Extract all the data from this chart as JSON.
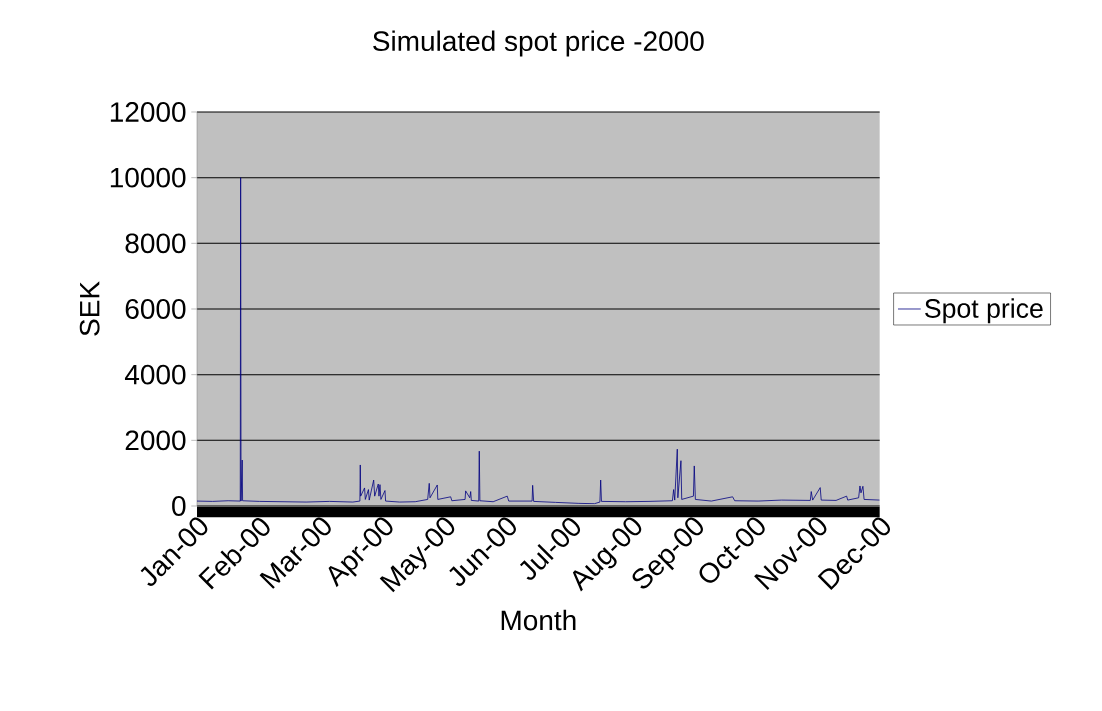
{
  "chart_data": {
    "type": "line",
    "title": "Simulated spot price -2000",
    "xlabel": "Month",
    "ylabel": "SEK",
    "x": [
      "2000-01-01T00:00",
      "2000-01-09T08:00",
      "2000-01-17T16:00",
      "2000-01-24T03:00",
      "2000-01-24T08:00",
      "2000-01-24T10:00",
      "2000-01-24T13:00",
      "2000-01-25T04:00",
      "2000-01-25T09:00",
      "2000-02-03T08:00",
      "2000-02-15T20:00",
      "2000-02-28T08:00",
      "2000-03-11T20:00",
      "2000-03-24T08:00",
      "2000-03-28T02:00",
      "2000-03-28T07:00",
      "2000-03-28T12:00",
      "2000-03-30T14:00",
      "2000-03-31T00:00",
      "2000-04-01T16:00",
      "2000-04-02T02:00",
      "2000-04-04T11:00",
      "2000-04-05T00:00",
      "2000-04-06T22:00",
      "2000-04-07T07:00",
      "2000-04-07T20:00",
      "2000-04-08T08:00",
      "2000-04-10T12:00",
      "2000-04-10T20:00",
      "2000-04-18T08:00",
      "2000-04-26T16:00",
      "2000-05-03T08:00",
      "2000-05-04T04:00",
      "2000-05-04T14:00",
      "2000-05-08T11:00",
      "2000-05-08T18:00",
      "2000-05-15T15:00",
      "2000-05-16T06:00",
      "2000-05-23T08:00",
      "2000-05-23T15:00",
      "2000-05-25T20:00",
      "2000-05-26T08:00",
      "2000-05-26T16:00",
      "2000-05-30T15:00",
      "2000-05-30T22:00",
      "2000-05-31T06:00",
      "2000-06-07T08:00",
      "2000-06-14T21:00",
      "2000-06-15T16:00",
      "2000-06-28T04:00",
      "2000-06-28T11:00",
      "2000-06-29T00:00",
      "2000-07-10T16:00",
      "2000-07-23T04:00",
      "2000-07-31T12:00",
      "2000-08-03T10:00",
      "2000-08-03T20:00",
      "2000-08-04T06:00",
      "2000-08-17T04:00",
      "2000-08-29T16:00",
      "2000-09-11T04:00",
      "2000-09-11T20:00",
      "2000-09-12T10:00",
      "2000-09-13T19:00",
      "2000-09-14T02:00",
      "2000-09-15T18:00",
      "2000-09-16T04:00",
      "2000-09-22T10:00",
      "2000-09-22T21:00",
      "2000-09-23T11:00",
      "2000-10-02T00:00",
      "2000-10-13T09:00",
      "2000-10-14T12:00",
      "2000-10-27T00:00",
      "2000-11-08T12:00",
      "2000-11-23T22:00",
      "2000-11-24T10:00",
      "2000-11-25T04:00",
      "2000-11-29T05:00",
      "2000-11-29T18:00",
      "2000-12-07T16:00",
      "2000-12-13T08:00",
      "2000-12-13T22:00",
      "2000-12-19T18:00",
      "2000-12-20T11:00",
      "2000-12-21T00:00",
      "2000-12-22T01:00",
      "2000-12-22T16:00",
      "2000-12-31T00:00"
    ],
    "series": [
      {
        "name": "Spot price",
        "color": "#000080",
        "values": [
          150,
          140,
          160,
          150,
          10000,
          6450,
          150,
          1400,
          160,
          140,
          130,
          120,
          140,
          120,
          150,
          1250,
          300,
          550,
          200,
          500,
          180,
          790,
          300,
          670,
          300,
          650,
          200,
          470,
          150,
          120,
          130,
          200,
          690,
          250,
          640,
          200,
          280,
          160,
          200,
          460,
          250,
          440,
          170,
          150,
          1670,
          160,
          130,
          300,
          150,
          150,
          630,
          140,
          110,
          80,
          70,
          120,
          790,
          140,
          130,
          140,
          160,
          500,
          180,
          1730,
          250,
          1380,
          200,
          300,
          1220,
          200,
          150,
          280,
          160,
          150,
          180,
          170,
          440,
          180,
          560,
          180,
          170,
          300,
          180,
          250,
          610,
          400,
          600,
          200,
          180
        ]
      }
    ],
    "xlim": [
      "2000-01-01",
      "2000-12-31"
    ],
    "xticks": [
      {
        "value": "2000-01-01",
        "label": "Jan-00"
      },
      {
        "value": "2000-02-03",
        "label": "Feb-00"
      },
      {
        "value": "2000-03-07",
        "label": "Mar-00"
      },
      {
        "value": "2000-04-09",
        "label": "Apr-00"
      },
      {
        "value": "2000-05-12",
        "label": "May-00"
      },
      {
        "value": "2000-06-14",
        "label": "Jun-00"
      },
      {
        "value": "2000-07-18",
        "label": "Jul-00"
      },
      {
        "value": "2000-08-20",
        "label": "Aug-00"
      },
      {
        "value": "2000-09-22",
        "label": "Sep-00"
      },
      {
        "value": "2000-10-25",
        "label": "Oct-00"
      },
      {
        "value": "2000-11-27",
        "label": "Nov-00"
      },
      {
        "value": "2000-12-31",
        "label": "Dec-00"
      }
    ],
    "ylim": [
      0,
      12000
    ],
    "yticks": [
      0,
      2000,
      4000,
      6000,
      8000,
      10000,
      12000
    ],
    "grid": "y",
    "legend": "right",
    "marker": "none",
    "line_style": "solid"
  }
}
